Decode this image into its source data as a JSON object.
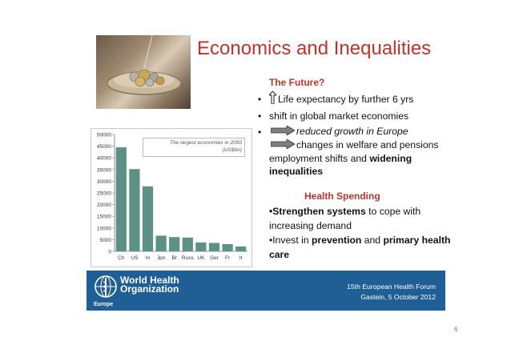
{
  "slide": {
    "title": "Economics and Inequalities",
    "future_heading": "The Future?",
    "future_points": {
      "life_expectancy": "Life expectancy by further 6 yrs",
      "shift": "shift in global market economies",
      "reduced_growth": "reduced growth in Europe",
      "welfare": "changes in welfare and pensions",
      "employment": "employment shifts and",
      "widening": "widening",
      "inequalities": "inequalities"
    },
    "health_heading": "Health Spending",
    "health_points": {
      "strengthen_bold": "•Strengthen systems",
      "strengthen_rest": " to cope with",
      "increasing": "increasing  demand",
      "invest_pre": "•Invest in ",
      "prevention": "prevention",
      "and": " and ",
      "primary": "primary health",
      "care": "care"
    },
    "footer": {
      "org_line1": "World Health",
      "org_line2": "Organization",
      "region": "Europe",
      "forum_line1": "15th European Health Forum",
      "forum_line2": "Gastein, 5 October 2012"
    },
    "page_number": "6"
  },
  "colors": {
    "accent": "#c0332b",
    "bar": "#5e9185",
    "footer": "#1f5f95"
  },
  "chart_data": {
    "type": "bar",
    "title": "The largest economies in 2050 (US$bn)",
    "title_line1": "The largest economies in 2050",
    "title_line2": "(US$bn)",
    "categories": [
      "Ch",
      "US",
      "In",
      "Jpn",
      "Br",
      "Russ",
      "UK",
      "Ger",
      "Fr",
      "It"
    ],
    "values": [
      44500,
      35200,
      27800,
      6700,
      6100,
      5900,
      3800,
      3600,
      3100,
      2100
    ],
    "ylim": [
      0,
      50000
    ],
    "yticks": [
      0,
      5000,
      10000,
      15000,
      20000,
      25000,
      30000,
      35000,
      40000,
      45000,
      50000
    ],
    "grid": false,
    "legend": "none"
  }
}
